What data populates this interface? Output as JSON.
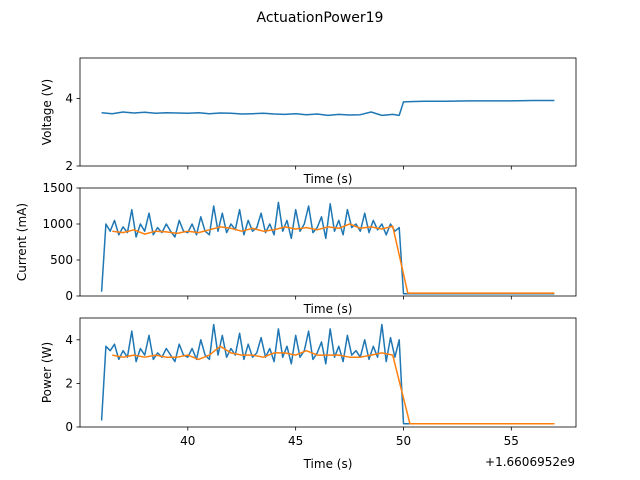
{
  "figure": {
    "title": "ActuationPower19",
    "offset_text": "+1.6606952e9"
  },
  "colors": {
    "raw": "#1f77b4",
    "smooth": "#ff7f0e",
    "axis": "#000000"
  },
  "chart_data": [
    {
      "type": "line",
      "ylabel": "Voltage (V)",
      "xlabel": "Time (s)",
      "xlim": [
        35,
        58
      ],
      "ylim": [
        2,
        5.2
      ],
      "xticks": [
        40,
        45,
        50,
        55
      ],
      "xticklabels": [],
      "yticks": [
        2,
        4
      ],
      "yticklabels": [
        "2",
        "4"
      ],
      "grid": false,
      "series": [
        {
          "style": "raw",
          "x": [
            36.0,
            36.5,
            37.0,
            37.5,
            38.0,
            38.5,
            39.0,
            39.5,
            40.0,
            40.5,
            41.0,
            41.5,
            42.0,
            42.5,
            43.0,
            43.5,
            44.0,
            44.5,
            45.0,
            45.5,
            46.0,
            46.5,
            47.0,
            47.5,
            48.0,
            48.5,
            49.0,
            49.5,
            49.8,
            50.0,
            50.5,
            51.0,
            52.0,
            53.0,
            54.0,
            55.0,
            56.0,
            57.0
          ],
          "y": [
            3.58,
            3.55,
            3.6,
            3.57,
            3.59,
            3.56,
            3.58,
            3.57,
            3.56,
            3.58,
            3.55,
            3.57,
            3.56,
            3.54,
            3.55,
            3.56,
            3.54,
            3.53,
            3.55,
            3.52,
            3.54,
            3.5,
            3.53,
            3.51,
            3.52,
            3.6,
            3.5,
            3.53,
            3.5,
            3.9,
            3.91,
            3.92,
            3.92,
            3.93,
            3.93,
            3.93,
            3.94,
            3.94
          ]
        }
      ]
    },
    {
      "type": "line",
      "ylabel": "Current (mA)",
      "xlabel": "Time (s)",
      "xlim": [
        35,
        58
      ],
      "ylim": [
        0,
        1500
      ],
      "xticks": [
        40,
        45,
        50,
        55
      ],
      "xticklabels": [],
      "yticks": [
        0,
        500,
        1000,
        1500
      ],
      "yticklabels": [
        "0",
        "500",
        "1000",
        "1500"
      ],
      "grid": false,
      "series": [
        {
          "style": "raw",
          "x": [
            36.0,
            36.2,
            36.4,
            36.6,
            36.8,
            37.0,
            37.2,
            37.4,
            37.6,
            37.8,
            38.0,
            38.2,
            38.4,
            38.6,
            38.8,
            39.0,
            39.2,
            39.4,
            39.6,
            39.8,
            40.0,
            40.2,
            40.4,
            40.6,
            40.8,
            41.0,
            41.2,
            41.4,
            41.6,
            41.8,
            42.0,
            42.2,
            42.4,
            42.6,
            42.8,
            43.0,
            43.2,
            43.4,
            43.6,
            43.8,
            44.0,
            44.2,
            44.4,
            44.6,
            44.8,
            45.0,
            45.2,
            45.4,
            45.6,
            45.8,
            46.0,
            46.2,
            46.4,
            46.6,
            46.8,
            47.0,
            47.2,
            47.4,
            47.6,
            47.8,
            48.0,
            48.2,
            48.4,
            48.6,
            48.8,
            49.0,
            49.2,
            49.4,
            49.6,
            49.8,
            50.0,
            51.0,
            52.0,
            53.0,
            54.0,
            55.0,
            56.0,
            57.0
          ],
          "y": [
            60,
            1000,
            900,
            1050,
            850,
            960,
            880,
            1200,
            820,
            1000,
            900,
            1150,
            850,
            950,
            880,
            1000,
            900,
            820,
            1050,
            900,
            880,
            1000,
            850,
            1100,
            900,
            850,
            1250,
            900,
            1150,
            880,
            1000,
            920,
            1200,
            850,
            1050,
            900,
            950,
            1150,
            880,
            1000,
            850,
            1300,
            900,
            1050,
            800,
            1200,
            900,
            1000,
            1250,
            880,
            950,
            1100,
            800,
            1280,
            900,
            1050,
            850,
            1200,
            950,
            1000,
            900,
            1150,
            880,
            1050,
            920,
            1000,
            850,
            1000,
            900,
            950,
            30,
            30,
            30,
            30,
            30,
            30,
            30,
            30
          ]
        },
        {
          "style": "smooth",
          "x": [
            36.5,
            37.0,
            37.5,
            38.0,
            38.5,
            39.0,
            39.5,
            40.0,
            40.5,
            41.0,
            41.5,
            42.0,
            42.5,
            43.0,
            43.5,
            44.0,
            44.5,
            45.0,
            45.5,
            46.0,
            46.5,
            47.0,
            47.5,
            48.0,
            48.5,
            49.0,
            49.5,
            50.2,
            51.0,
            52.0,
            53.0,
            54.0,
            55.0,
            56.0,
            57.0
          ],
          "y": [
            900,
            880,
            920,
            860,
            900,
            890,
            870,
            900,
            880,
            920,
            960,
            940,
            900,
            940,
            900,
            920,
            960,
            930,
            950,
            920,
            960,
            940,
            1000,
            940,
            960,
            930,
            970,
            40,
            40,
            40,
            40,
            40,
            40,
            40,
            40
          ]
        }
      ]
    },
    {
      "type": "line",
      "ylabel": "Power (W)",
      "xlabel": "Time (s)",
      "xlim": [
        35,
        58
      ],
      "ylim": [
        0,
        5
      ],
      "xticks": [
        40,
        45,
        50,
        55
      ],
      "xticklabels": [
        "40",
        "45",
        "50",
        "55"
      ],
      "yticks": [
        0,
        2,
        4
      ],
      "yticklabels": [
        "0",
        "2",
        "4"
      ],
      "grid": false,
      "series": [
        {
          "style": "raw",
          "x": [
            36.0,
            36.2,
            36.4,
            36.6,
            36.8,
            37.0,
            37.2,
            37.4,
            37.6,
            37.8,
            38.0,
            38.2,
            38.4,
            38.6,
            38.8,
            39.0,
            39.2,
            39.4,
            39.6,
            39.8,
            40.0,
            40.2,
            40.4,
            40.6,
            40.8,
            41.0,
            41.2,
            41.4,
            41.6,
            41.8,
            42.0,
            42.2,
            42.4,
            42.6,
            42.8,
            43.0,
            43.2,
            43.4,
            43.6,
            43.8,
            44.0,
            44.2,
            44.4,
            44.6,
            44.8,
            45.0,
            45.2,
            45.4,
            45.6,
            45.8,
            46.0,
            46.2,
            46.4,
            46.6,
            46.8,
            47.0,
            47.2,
            47.4,
            47.6,
            47.8,
            48.0,
            48.2,
            48.4,
            48.6,
            48.8,
            49.0,
            49.2,
            49.4,
            49.6,
            49.8,
            50.0,
            51.0,
            52.0,
            53.0,
            54.0,
            55.0,
            56.0,
            57.0
          ],
          "y": [
            0.3,
            3.7,
            3.5,
            3.8,
            3.1,
            3.5,
            3.2,
            4.4,
            3.0,
            3.6,
            3.3,
            4.2,
            3.1,
            3.4,
            3.2,
            3.6,
            3.3,
            3.0,
            3.8,
            3.3,
            3.2,
            3.6,
            3.1,
            4.0,
            3.3,
            3.1,
            4.7,
            3.3,
            4.2,
            3.2,
            3.6,
            3.3,
            4.3,
            3.1,
            3.8,
            3.2,
            3.4,
            4.1,
            3.2,
            3.6,
            3.0,
            4.5,
            3.2,
            3.7,
            2.9,
            4.2,
            3.2,
            3.5,
            4.4,
            3.1,
            3.4,
            3.9,
            2.9,
            4.5,
            3.2,
            3.7,
            3.0,
            4.2,
            3.3,
            3.5,
            3.2,
            4.0,
            3.1,
            3.7,
            3.2,
            4.7,
            3.0,
            4.1,
            3.2,
            4.0,
            0.15,
            0.15,
            0.15,
            0.15,
            0.15,
            0.15,
            0.15,
            0.15
          ]
        },
        {
          "style": "smooth",
          "x": [
            36.5,
            37.0,
            37.5,
            38.0,
            38.5,
            39.0,
            39.5,
            40.0,
            40.5,
            41.0,
            41.5,
            42.0,
            42.5,
            43.0,
            43.5,
            44.0,
            44.5,
            45.0,
            45.5,
            46.0,
            46.5,
            47.0,
            47.5,
            48.0,
            48.5,
            49.0,
            49.5,
            50.3,
            51.0,
            52.0,
            53.0,
            54.0,
            55.0,
            56.0,
            57.0
          ],
          "y": [
            3.3,
            3.2,
            3.3,
            3.2,
            3.3,
            3.2,
            3.2,
            3.3,
            3.1,
            3.3,
            3.7,
            3.4,
            3.3,
            3.3,
            3.2,
            3.4,
            3.4,
            3.3,
            3.5,
            3.3,
            3.3,
            3.3,
            3.2,
            3.2,
            3.3,
            3.4,
            3.3,
            0.15,
            0.15,
            0.15,
            0.15,
            0.15,
            0.15,
            0.15,
            0.15
          ]
        }
      ]
    }
  ]
}
